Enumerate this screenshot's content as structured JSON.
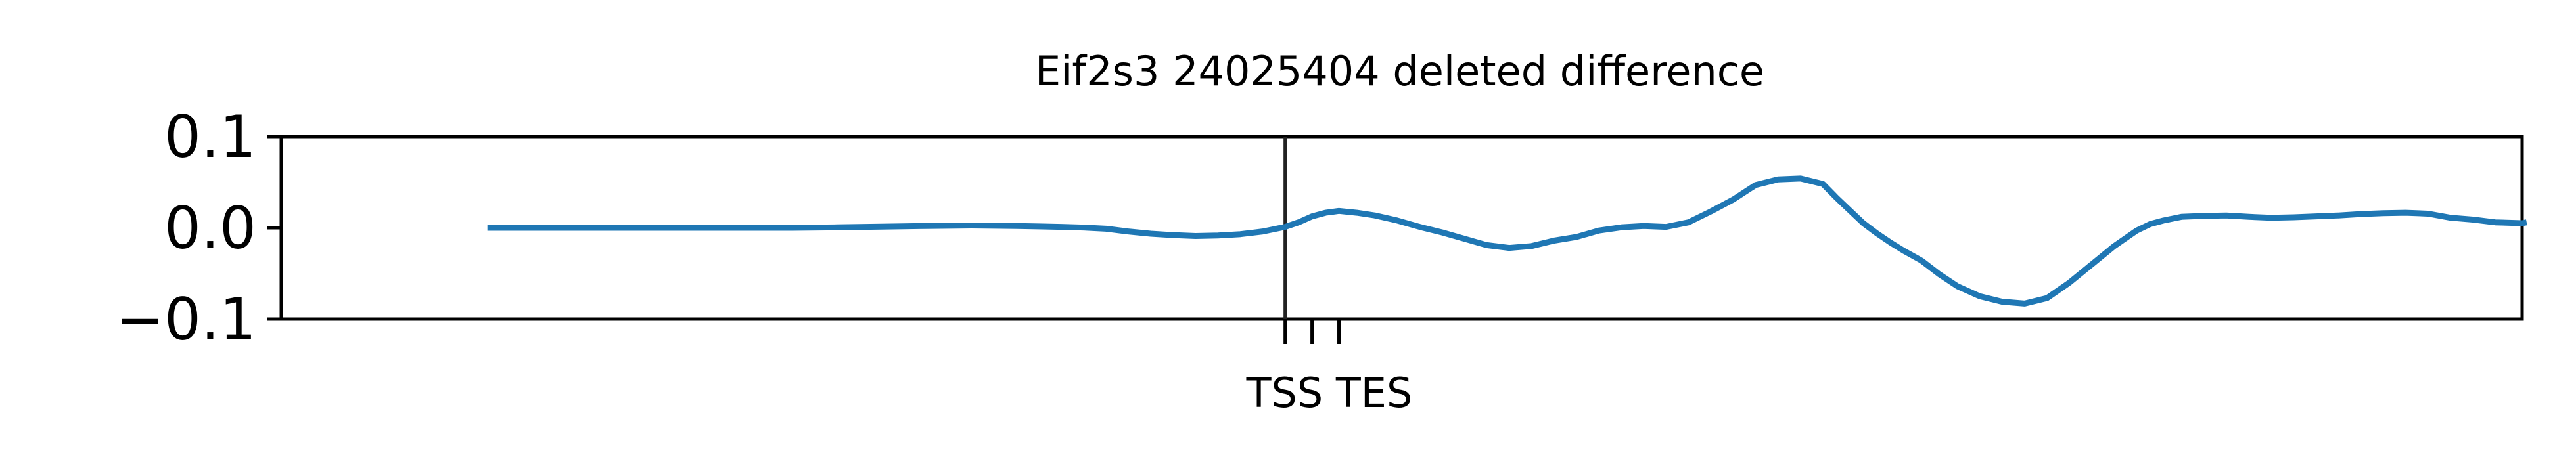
{
  "chart_data": {
    "type": "line",
    "title": "Eif2s3 24025404 deleted difference",
    "xlabel": "",
    "ylabel": "",
    "xlim": [
      -224,
      276
    ],
    "ylim": [
      -0.1,
      0.1
    ],
    "yticks": [
      {
        "value": 0.1,
        "label": "0.1"
      },
      {
        "value": 0.0,
        "label": "0.0"
      },
      {
        "value": -0.1,
        "label": "−0.1"
      }
    ],
    "xticks": [
      {
        "value": 0,
        "label": ""
      },
      {
        "value": 6,
        "label": ""
      },
      {
        "value": 12,
        "label": ""
      }
    ],
    "tick_annotation": "TSS TES",
    "vline_x": 0,
    "grid": false,
    "series": [
      {
        "color": "#1f77b4",
        "x": [
          -178,
          -170,
          -160,
          -150,
          -140,
          -130,
          -120,
          -110,
          -100,
          -90,
          -80,
          -70,
          -60,
          -55,
          -50,
          -45,
          -40,
          -35,
          -30,
          -25,
          -20,
          -15,
          -10,
          -5,
          0,
          3,
          6,
          9,
          12,
          16,
          20,
          25,
          30,
          35,
          40,
          45,
          50,
          55,
          60,
          65,
          70,
          75,
          80,
          85,
          90,
          95,
          100,
          105,
          110,
          115,
          120,
          123,
          126,
          129,
          132,
          135,
          138,
          142,
          146,
          150,
          155,
          160,
          165,
          170,
          175,
          180,
          185,
          190,
          193,
          196,
          200,
          205,
          210,
          215,
          220,
          225,
          230,
          235,
          240,
          245,
          250,
          255,
          260,
          265,
          270,
          276,
          277
        ],
        "y": [
          0.0,
          0.0,
          0.0,
          0.0,
          0.0,
          0.0,
          0.0,
          0.0,
          0.0005,
          0.0012,
          0.002,
          0.0025,
          0.002,
          0.0015,
          0.001,
          0.0003,
          -0.001,
          -0.004,
          -0.0065,
          -0.008,
          -0.009,
          -0.0085,
          -0.007,
          -0.004,
          0.001,
          0.006,
          0.0125,
          0.0165,
          0.0185,
          0.0165,
          0.0135,
          0.008,
          0.001,
          -0.005,
          -0.012,
          -0.019,
          -0.022,
          -0.02,
          -0.014,
          -0.01,
          -0.003,
          0.0005,
          0.002,
          0.001,
          0.006,
          0.018,
          0.031,
          0.047,
          0.053,
          0.054,
          0.048,
          0.033,
          0.019,
          0.005,
          -0.006,
          -0.016,
          -0.025,
          -0.036,
          -0.051,
          -0.064,
          -0.075,
          -0.081,
          -0.083,
          -0.077,
          -0.06,
          -0.04,
          -0.02,
          -0.003,
          0.004,
          0.008,
          0.012,
          0.013,
          0.0135,
          0.012,
          0.011,
          0.0115,
          0.0125,
          0.0135,
          0.015,
          0.016,
          0.0165,
          0.0155,
          0.011,
          0.009,
          0.006,
          0.005,
          0.006
        ]
      }
    ]
  }
}
